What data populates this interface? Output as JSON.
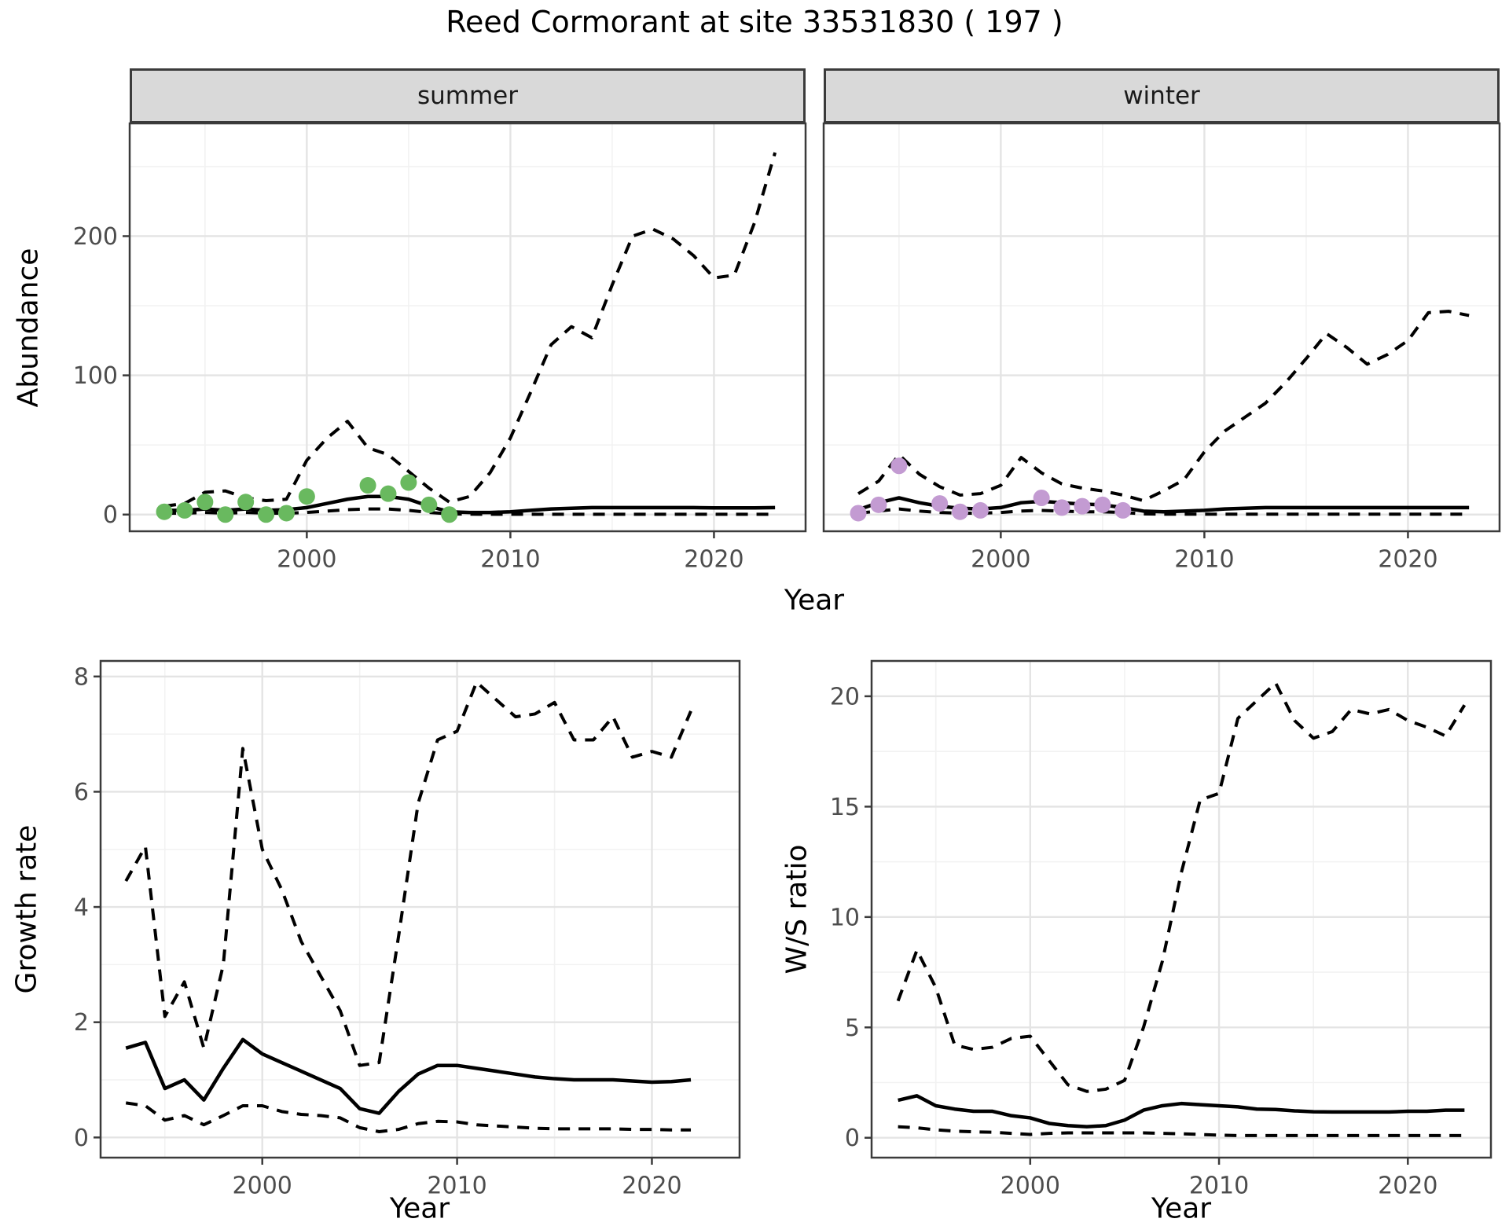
{
  "title": "Reed Cormorant at site 33531830 ( 197 )",
  "labels": {
    "y_abundance": "Abundance",
    "y_growth": "Growth rate",
    "y_ws": "W/S ratio",
    "x_top": "Year",
    "x_growth": "Year",
    "x_ws": "Year"
  },
  "facets": [
    {
      "label": "summer"
    },
    {
      "label": "winter"
    }
  ],
  "colors": {
    "summer_points": "#69b95f",
    "winter_points": "#c39bd2",
    "line": "#000000",
    "grid_major": "#e4e4e4",
    "grid_minor": "#f2f2f2",
    "strip_bg": "#d9d9d9",
    "panel_border": "#3b3b3b",
    "tick_text": "#4d4d4d"
  },
  "chart_data": [
    {
      "key": "summer",
      "type": "line",
      "facet": "summer",
      "xlabel": "Year",
      "ylabel": "Abundance",
      "xlim": [
        1991.3,
        2024.5
      ],
      "ylim": [
        -12,
        281
      ],
      "xticks": [
        2000,
        2010,
        2020
      ],
      "xminor": [
        1995,
        2005,
        2015
      ],
      "yticks": [
        0,
        100,
        200
      ],
      "yminor": [
        50,
        150,
        250
      ],
      "years": [
        1993,
        1994,
        1995,
        1996,
        1997,
        1998,
        1999,
        2000,
        2001,
        2002,
        2003,
        2004,
        2005,
        2006,
        2007,
        2008,
        2009,
        2010,
        2011,
        2012,
        2013,
        2014,
        2015,
        2016,
        2017,
        2018,
        2019,
        2020,
        2021,
        2022,
        2023
      ],
      "series": [
        {
          "name": "upper-ci",
          "style": "dashed",
          "values": [
            6,
            8,
            16,
            17,
            12,
            10,
            11,
            39,
            55,
            67,
            48,
            43,
            31,
            19,
            9,
            13,
            30,
            55,
            88,
            122,
            135,
            127,
            165,
            200,
            205,
            198,
            186,
            170,
            172,
            210,
            260
          ]
        },
        {
          "name": "lower-ci",
          "style": "dashed",
          "values": [
            1,
            1,
            1.5,
            1,
            1.5,
            1,
            1,
            1.5,
            2.5,
            3.5,
            4,
            4,
            3,
            1.5,
            0.5,
            0.3,
            0.2,
            0.2,
            0.2,
            0.2,
            0.2,
            0.2,
            0.2,
            0.2,
            0.2,
            0.2,
            0.2,
            0.2,
            0.2,
            0.2,
            0.2
          ]
        },
        {
          "name": "median",
          "style": "solid",
          "values": [
            3,
            3,
            4,
            3,
            4,
            3,
            3.5,
            5,
            8,
            11,
            13,
            13,
            11,
            6,
            2,
            1.5,
            1.5,
            2,
            3,
            4,
            4.5,
            5,
            5,
            5,
            5,
            5,
            5,
            4.8,
            4.8,
            4.8,
            5
          ]
        }
      ],
      "points": {
        "color_key": "summer_points",
        "x": [
          1993,
          1994,
          1995,
          1996,
          1997,
          1998,
          1999,
          2000,
          2003,
          2004,
          2005,
          2006,
          2007
        ],
        "y": [
          2,
          3,
          9,
          0,
          9,
          0,
          1,
          13,
          21,
          15,
          23,
          7,
          0
        ]
      }
    },
    {
      "key": "winter",
      "type": "line",
      "facet": "winter",
      "xlabel": "Year",
      "ylabel": "Abundance",
      "xlim": [
        1991.3,
        2024.5
      ],
      "ylim": [
        -12,
        281
      ],
      "xticks": [
        2000,
        2010,
        2020
      ],
      "xminor": [
        1995,
        2005,
        2015
      ],
      "yticks": [
        0,
        100,
        200
      ],
      "yminor": [
        50,
        150,
        250
      ],
      "years": [
        1993,
        1994,
        1995,
        1996,
        1997,
        1998,
        1999,
        2000,
        2001,
        2002,
        2003,
        2004,
        2005,
        2006,
        2007,
        2008,
        2009,
        2010,
        2011,
        2012,
        2013,
        2014,
        2015,
        2016,
        2017,
        2018,
        2019,
        2020,
        2021,
        2022,
        2023
      ],
      "series": [
        {
          "name": "upper-ci",
          "style": "dashed",
          "values": [
            15,
            24,
            43,
            29,
            20,
            14,
            15,
            21,
            41,
            30,
            22,
            19,
            17,
            14,
            10,
            17,
            25,
            45,
            60,
            70,
            80,
            95,
            112,
            130,
            120,
            108,
            115,
            125,
            145,
            146,
            143
          ]
        },
        {
          "name": "lower-ci",
          "style": "dashed",
          "values": [
            1,
            2.5,
            4,
            2.5,
            1.5,
            1,
            1,
            1.5,
            2.5,
            3,
            2.5,
            2,
            2,
            1.5,
            0.5,
            0.3,
            0.3,
            0.3,
            0.3,
            0.3,
            0.3,
            0.3,
            0.3,
            0.3,
            0.3,
            0.3,
            0.3,
            0.3,
            0.3,
            0.3,
            0.3
          ]
        },
        {
          "name": "median",
          "style": "solid",
          "values": [
            3.5,
            8.5,
            12,
            8.5,
            6,
            4.5,
            4,
            5,
            8.5,
            9.5,
            8.5,
            7.5,
            7,
            5,
            2.5,
            2,
            2.5,
            3,
            4,
            4.5,
            5,
            5,
            5,
            5,
            5,
            5,
            5,
            5,
            5,
            5,
            5
          ]
        }
      ],
      "points": {
        "color_key": "winter_points",
        "x": [
          1993,
          1994,
          1995,
          1997,
          1998,
          1999,
          2002,
          2003,
          2004,
          2005,
          2006
        ],
        "y": [
          1,
          7,
          35,
          8,
          2,
          3,
          12,
          5,
          6,
          7,
          3
        ]
      }
    },
    {
      "key": "growth",
      "type": "line",
      "facet": "",
      "xlabel": "Year",
      "ylabel": "Growth rate",
      "xlim": [
        1991.7,
        2024.5
      ],
      "ylim": [
        -0.35,
        8.27
      ],
      "xticks": [
        2000,
        2010,
        2020
      ],
      "xminor": [
        1995,
        2005,
        2015
      ],
      "yticks": [
        0,
        2,
        4,
        6,
        8
      ],
      "yminor": [
        1,
        3,
        5,
        7
      ],
      "years": [
        1993,
        1994,
        1995,
        1996,
        1997,
        1998,
        1999,
        2000,
        2001,
        2002,
        2003,
        2004,
        2005,
        2006,
        2007,
        2008,
        2009,
        2010,
        2011,
        2012,
        2013,
        2014,
        2015,
        2016,
        2017,
        2018,
        2019,
        2020,
        2021,
        2022
      ],
      "series": [
        {
          "name": "upper-ci",
          "style": "dashed",
          "values": [
            4.45,
            5.05,
            2.1,
            2.7,
            1.55,
            3.0,
            6.75,
            5.0,
            4.3,
            3.4,
            2.8,
            2.2,
            1.25,
            1.3,
            3.5,
            5.8,
            6.9,
            7.05,
            7.9,
            7.6,
            7.3,
            7.35,
            7.55,
            6.9,
            6.9,
            7.3,
            6.6,
            6.7,
            6.6,
            7.4
          ]
        },
        {
          "name": "lower-ci",
          "style": "dashed",
          "values": [
            0.6,
            0.55,
            0.3,
            0.38,
            0.22,
            0.38,
            0.55,
            0.55,
            0.45,
            0.4,
            0.38,
            0.34,
            0.17,
            0.1,
            0.14,
            0.24,
            0.28,
            0.27,
            0.22,
            0.2,
            0.18,
            0.16,
            0.15,
            0.15,
            0.15,
            0.15,
            0.14,
            0.14,
            0.13,
            0.13
          ]
        },
        {
          "name": "median",
          "style": "solid",
          "values": [
            1.55,
            1.65,
            0.85,
            1.0,
            0.65,
            1.2,
            1.7,
            1.45,
            1.3,
            1.15,
            1.0,
            0.85,
            0.5,
            0.42,
            0.8,
            1.1,
            1.25,
            1.25,
            1.2,
            1.15,
            1.1,
            1.05,
            1.02,
            1.0,
            1.0,
            1.0,
            0.98,
            0.96,
            0.97,
            1.0
          ]
        }
      ]
    },
    {
      "key": "ws",
      "type": "line",
      "facet": "",
      "xlabel": "Year",
      "ylabel": "W/S ratio",
      "xlim": [
        1991.6,
        2024.4
      ],
      "ylim": [
        -0.9,
        21.6
      ],
      "xticks": [
        2000,
        2010,
        2020
      ],
      "xminor": [
        1995,
        2005,
        2015
      ],
      "yticks": [
        0,
        5,
        10,
        15,
        20
      ],
      "yminor": [
        2.5,
        7.5,
        12.5,
        17.5
      ],
      "years": [
        1993,
        1994,
        1995,
        1996,
        1997,
        1998,
        1999,
        2000,
        2001,
        2002,
        2003,
        2004,
        2005,
        2006,
        2007,
        2008,
        2009,
        2010,
        2011,
        2012,
        2013,
        2014,
        2015,
        2016,
        2017,
        2018,
        2019,
        2020,
        2021,
        2022,
        2023
      ],
      "series": [
        {
          "name": "upper-ci",
          "style": "dashed",
          "values": [
            6.2,
            8.5,
            6.8,
            4.2,
            4.0,
            4.1,
            4.5,
            4.6,
            3.5,
            2.4,
            2.1,
            2.2,
            2.6,
            5.0,
            8.0,
            12.0,
            15.3,
            15.6,
            19.0,
            19.8,
            20.6,
            18.9,
            18.1,
            18.4,
            19.4,
            19.2,
            19.4,
            18.9,
            18.6,
            18.2,
            19.6
          ]
        },
        {
          "name": "lower-ci",
          "style": "dashed",
          "values": [
            0.5,
            0.45,
            0.36,
            0.3,
            0.27,
            0.25,
            0.2,
            0.15,
            0.2,
            0.22,
            0.22,
            0.22,
            0.22,
            0.22,
            0.2,
            0.18,
            0.15,
            0.12,
            0.1,
            0.1,
            0.1,
            0.1,
            0.1,
            0.1,
            0.1,
            0.1,
            0.1,
            0.1,
            0.1,
            0.1,
            0.1
          ]
        },
        {
          "name": "median",
          "style": "solid",
          "values": [
            1.7,
            1.9,
            1.45,
            1.3,
            1.2,
            1.2,
            1.0,
            0.9,
            0.65,
            0.55,
            0.5,
            0.55,
            0.8,
            1.25,
            1.45,
            1.55,
            1.5,
            1.45,
            1.4,
            1.3,
            1.28,
            1.22,
            1.18,
            1.17,
            1.17,
            1.17,
            1.17,
            1.2,
            1.2,
            1.25,
            1.25
          ]
        }
      ]
    }
  ]
}
